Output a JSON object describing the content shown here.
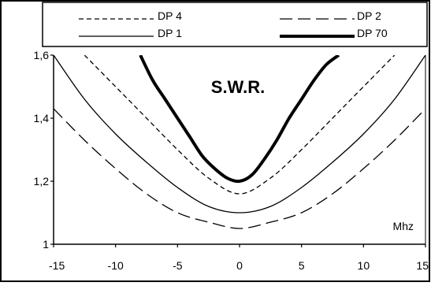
{
  "chart_data": {
    "type": "line",
    "title": "S.W.R.",
    "x_unit_label": "Mhz",
    "xlim": [
      -15,
      15
    ],
    "ylim": [
      1,
      1.6
    ],
    "x_ticks": [
      -15,
      -10,
      -5,
      0,
      5,
      10,
      15
    ],
    "y_ticks": [
      {
        "value": 1,
        "label": "1"
      },
      {
        "value": 1.2,
        "label": "1,2"
      },
      {
        "value": 1.4,
        "label": "1,4"
      },
      {
        "value": 1.6,
        "label": "1,6"
      }
    ],
    "grid": false,
    "legend_position": "top",
    "series": [
      {
        "name": "DP 4",
        "style": "short-dash",
        "color": "#000000",
        "x": [
          -12.5,
          -10,
          -7.5,
          -5,
          -2.5,
          0,
          2.5,
          5,
          7.5,
          10,
          12.5
        ],
        "y": [
          1.6,
          1.5,
          1.4,
          1.3,
          1.21,
          1.16,
          1.21,
          1.3,
          1.4,
          1.5,
          1.6
        ]
      },
      {
        "name": "DP 2",
        "style": "long-dash",
        "color": "#000000",
        "x": [
          -15,
          -12.5,
          -10,
          -7.5,
          -5,
          -2.5,
          0,
          2.5,
          5,
          7.5,
          10,
          12.5,
          15
        ],
        "y": [
          1.43,
          1.33,
          1.24,
          1.16,
          1.1,
          1.07,
          1.05,
          1.07,
          1.1,
          1.16,
          1.24,
          1.33,
          1.43
        ]
      },
      {
        "name": "DP 1",
        "style": "solid",
        "color": "#000000",
        "x": [
          -15,
          -12.5,
          -10,
          -7.5,
          -5,
          -2.5,
          0,
          2.5,
          5,
          7.5,
          10,
          12.5,
          15
        ],
        "y": [
          1.6,
          1.46,
          1.35,
          1.26,
          1.18,
          1.12,
          1.1,
          1.12,
          1.18,
          1.26,
          1.35,
          1.46,
          1.6
        ]
      },
      {
        "name": "DP 70",
        "style": "thick-solid",
        "color": "#000000",
        "x": [
          -8,
          -7,
          -6,
          -5,
          -4,
          -3,
          -2,
          -1,
          0,
          1,
          2,
          3,
          4,
          5,
          6,
          7,
          8
        ],
        "y": [
          1.6,
          1.52,
          1.46,
          1.4,
          1.34,
          1.28,
          1.24,
          1.21,
          1.2,
          1.22,
          1.27,
          1.33,
          1.4,
          1.46,
          1.52,
          1.57,
          1.6
        ]
      }
    ]
  }
}
